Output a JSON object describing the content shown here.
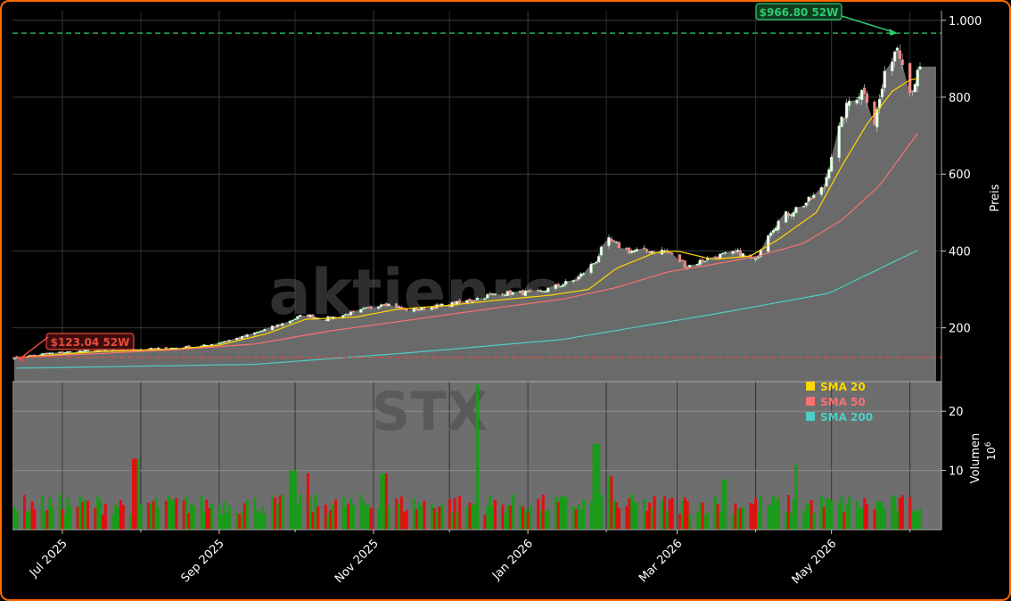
{
  "chart_data": {
    "type": "candlestick",
    "watermark": "STX",
    "site_watermark": "aktienroom.com",
    "price_axis": {
      "label": "Preis",
      "ylim": [
        60,
        1025
      ],
      "ticks": [
        "200",
        "400",
        "600",
        "800",
        "1.000"
      ],
      "tick_values": [
        200,
        400,
        600,
        800,
        1000
      ]
    },
    "volume_axis": {
      "label": "Volumen",
      "multiplier": "10",
      "exponent": "6",
      "ylim": [
        0,
        25
      ],
      "ticks": [
        "10",
        "20"
      ],
      "tick_values": [
        10,
        20
      ]
    },
    "x_ticks": [
      "Jul 2025",
      "Sep 2025",
      "Nov 2025",
      "Jan 2026",
      "Mar 2026",
      "May 2026"
    ],
    "x_tick_dates": [
      "2025-07-01",
      "2025-09-01",
      "2025-11-01",
      "2026-01-01",
      "2026-03-01",
      "2026-05-01"
    ],
    "date_range": [
      "2025-06-12",
      "2026-06-05"
    ],
    "grid": true,
    "high_52w": {
      "label": "$966.80 52W",
      "value": 966.8,
      "date": "2026-05-27",
      "color": "#2ecc71"
    },
    "low_52w": {
      "label": "$123.04 52W",
      "value": 123.04,
      "date": "2025-06-13",
      "color": "#e74c3c"
    },
    "legend_placement": "upper-right of volume panel",
    "legend": [
      {
        "name": "SMA 20",
        "color": "#ffd700"
      },
      {
        "name": "SMA 50",
        "color": "#f87171"
      },
      {
        "name": "SMA 200",
        "color": "#4ecdc4"
      }
    ],
    "price_anchors": [
      [
        "2025-06-13",
        123
      ],
      [
        "2025-06-25",
        133
      ],
      [
        "2025-07-10",
        140
      ],
      [
        "2025-07-25",
        143
      ],
      [
        "2025-08-10",
        146
      ],
      [
        "2025-08-25",
        152
      ],
      [
        "2025-09-10",
        175
      ],
      [
        "2025-09-25",
        208
      ],
      [
        "2025-10-05",
        235
      ],
      [
        "2025-10-12",
        222
      ],
      [
        "2025-10-25",
        240
      ],
      [
        "2025-11-05",
        265
      ],
      [
        "2025-11-15",
        245
      ],
      [
        "2025-11-25",
        255
      ],
      [
        "2025-12-05",
        265
      ],
      [
        "2025-12-20",
        290
      ],
      [
        "2026-01-05",
        292
      ],
      [
        "2026-01-20",
        325
      ],
      [
        "2026-01-28",
        375
      ],
      [
        "2026-02-01",
        430
      ],
      [
        "2026-02-10",
        400
      ],
      [
        "2026-02-25",
        400
      ],
      [
        "2026-03-05",
        360
      ],
      [
        "2026-03-15",
        385
      ],
      [
        "2026-03-25",
        395
      ],
      [
        "2026-04-01",
        375
      ],
      [
        "2026-04-05",
        440
      ],
      [
        "2026-04-12",
        490
      ],
      [
        "2026-04-22",
        530
      ],
      [
        "2026-04-28",
        565
      ],
      [
        "2026-05-02",
        680
      ],
      [
        "2026-05-08",
        790
      ],
      [
        "2026-05-14",
        820
      ],
      [
        "2026-05-18",
        735
      ],
      [
        "2026-05-23",
        880
      ],
      [
        "2026-05-27",
        935
      ],
      [
        "2026-05-30",
        885
      ],
      [
        "2026-06-01",
        815
      ],
      [
        "2026-06-05",
        870
      ]
    ],
    "sma20_anchors": [
      [
        "2025-06-13",
        123
      ],
      [
        "2025-07-15",
        138
      ],
      [
        "2025-08-15",
        145
      ],
      [
        "2025-09-01",
        155
      ],
      [
        "2025-09-20",
        185
      ],
      [
        "2025-10-05",
        222
      ],
      [
        "2025-10-25",
        228
      ],
      [
        "2025-11-10",
        248
      ],
      [
        "2025-11-30",
        258
      ],
      [
        "2025-12-20",
        272
      ],
      [
        "2026-01-10",
        285
      ],
      [
        "2026-01-25",
        300
      ],
      [
        "2026-02-05",
        355
      ],
      [
        "2026-02-20",
        395
      ],
      [
        "2026-03-01",
        400
      ],
      [
        "2026-03-15",
        378
      ],
      [
        "2026-03-30",
        387
      ],
      [
        "2026-04-10",
        430
      ],
      [
        "2026-04-25",
        500
      ],
      [
        "2026-05-05",
        620
      ],
      [
        "2026-05-15",
        730
      ],
      [
        "2026-05-25",
        815
      ],
      [
        "2026-06-01",
        845
      ],
      [
        "2026-06-05",
        850
      ]
    ],
    "sma50_anchors": [
      [
        "2025-06-13",
        123
      ],
      [
        "2025-07-15",
        133
      ],
      [
        "2025-08-15",
        143
      ],
      [
        "2025-09-15",
        158
      ],
      [
        "2025-10-15",
        192
      ],
      [
        "2025-11-15",
        220
      ],
      [
        "2025-12-15",
        248
      ],
      [
        "2026-01-15",
        275
      ],
      [
        "2026-02-05",
        305
      ],
      [
        "2026-02-25",
        345
      ],
      [
        "2026-03-15",
        365
      ],
      [
        "2026-04-01",
        385
      ],
      [
        "2026-04-20",
        420
      ],
      [
        "2026-05-05",
        480
      ],
      [
        "2026-05-20",
        570
      ],
      [
        "2026-06-05",
        715
      ]
    ],
    "sma200_anchors": [
      [
        "2025-06-13",
        95
      ],
      [
        "2025-09-15",
        105
      ],
      [
        "2025-11-15",
        135
      ],
      [
        "2026-01-15",
        170
      ],
      [
        "2026-03-15",
        235
      ],
      [
        "2026-04-30",
        290
      ],
      [
        "2026-06-05",
        405
      ]
    ],
    "volume_spikes": [
      [
        "2025-07-30",
        12
      ],
      [
        "2025-09-30",
        10
      ],
      [
        "2025-10-05",
        9.5
      ],
      [
        "2025-11-05",
        9.5
      ],
      [
        "2025-12-13",
        24.5
      ],
      [
        "2026-01-28",
        14.5
      ],
      [
        "2026-02-02",
        9
      ],
      [
        "2026-04-18",
        11
      ],
      [
        "2026-03-20",
        8.5
      ]
    ]
  }
}
